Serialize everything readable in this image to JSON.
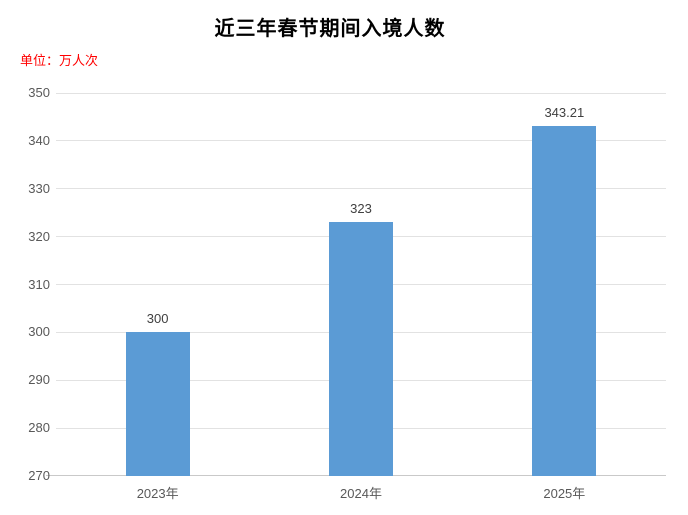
{
  "title": "近三年春节期间入境人数",
  "unit_label": "单位：万人次",
  "colors": {
    "bar": "#5B9BD5",
    "title": "#000000",
    "unit": "#FF0000",
    "tick_label": "#595959",
    "data_label": "#404040",
    "gridline": "#E2E2E2",
    "axis_line": "#C9C9C9",
    "background": "#FFFFFF"
  },
  "chart_data": {
    "type": "bar",
    "title": "近三年春节期间入境人数",
    "unit": "万人次",
    "categories": [
      "2023年",
      "2024年",
      "2025年"
    ],
    "values": [
      300,
      323,
      343.21
    ],
    "data_labels": [
      "300",
      "323",
      "343.21"
    ],
    "xlabel": "",
    "ylabel": "",
    "ylim": [
      270,
      350
    ],
    "yticks": [
      270,
      280,
      290,
      300,
      310,
      320,
      330,
      340,
      350
    ],
    "grid": true,
    "legend": false
  }
}
